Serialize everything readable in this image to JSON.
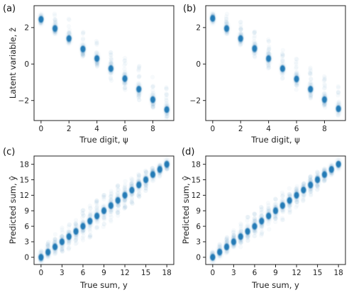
{
  "chart_data": [
    {
      "panel_label": "(a)",
      "type": "scatter",
      "xlabel": "True digit, ψ",
      "ylabel": "Latent variable, ẑ",
      "xlim": [
        -0.5,
        9.5
      ],
      "ylim": [
        -3.1,
        3.2
      ],
      "xticks": [
        0,
        2,
        4,
        6,
        8
      ],
      "yticks": [
        -2,
        0,
        2
      ],
      "xtick_labels": [
        "0",
        "2",
        "4",
        "6",
        "8"
      ],
      "ytick_labels": [
        "−2",
        "0",
        "2"
      ],
      "grid": false,
      "x": [
        0,
        1,
        2,
        3,
        4,
        5,
        6,
        7,
        8,
        9
      ],
      "y": [
        2.45,
        1.95,
        1.4,
        0.82,
        0.3,
        -0.25,
        -0.8,
        -1.38,
        -1.95,
        -2.5
      ],
      "spread_low": [
        0.3,
        0.3,
        0.3,
        0.5,
        0.6,
        0.7,
        0.7,
        0.7,
        0.6,
        0.6
      ],
      "spread_high": [
        0.3,
        0.9,
        1.1,
        1.2,
        1.1,
        1.2,
        1.2,
        1.3,
        1.4,
        1.5
      ],
      "color": "#1f77b4"
    },
    {
      "panel_label": "(b)",
      "type": "scatter",
      "xlabel": "True digit, ψ",
      "ylabel": "",
      "xlim": [
        -0.5,
        9.5
      ],
      "ylim": [
        -3.1,
        3.2
      ],
      "xticks": [
        0,
        2,
        4,
        6,
        8
      ],
      "yticks": [
        -2,
        0,
        2
      ],
      "xtick_labels": [
        "0",
        "2",
        "4",
        "6",
        "8"
      ],
      "ytick_labels": [
        "−2",
        "0",
        "2"
      ],
      "grid": false,
      "x": [
        0,
        1,
        2,
        3,
        4,
        5,
        6,
        7,
        8,
        9
      ],
      "y": [
        2.5,
        1.95,
        1.4,
        0.85,
        0.3,
        -0.25,
        -0.82,
        -1.38,
        -1.95,
        -2.45
      ],
      "spread_low": [
        0.2,
        0.3,
        0.4,
        0.5,
        0.6,
        0.6,
        0.6,
        0.6,
        0.5,
        0.4
      ],
      "spread_high": [
        0.3,
        0.8,
        1.0,
        1.1,
        1.1,
        1.2,
        1.2,
        1.2,
        1.3,
        1.4
      ],
      "color": "#1f77b4"
    },
    {
      "panel_label": "(c)",
      "type": "scatter",
      "xlabel": "True sum, y",
      "ylabel": "Predicted sum, ŷ",
      "xlim": [
        -1,
        19
      ],
      "ylim": [
        -1.4,
        19.6
      ],
      "xticks": [
        0,
        3,
        6,
        9,
        12,
        15,
        18
      ],
      "yticks": [
        0,
        3,
        6,
        9,
        12,
        15,
        18
      ],
      "xtick_labels": [
        "0",
        "3",
        "6",
        "9",
        "12",
        "15",
        "18"
      ],
      "ytick_labels": [
        "0",
        "3",
        "6",
        "9",
        "12",
        "15",
        "18"
      ],
      "grid": false,
      "x": [
        0,
        1,
        2,
        3,
        4,
        5,
        6,
        7,
        8,
        9,
        10,
        11,
        12,
        13,
        14,
        15,
        16,
        17,
        18
      ],
      "y": [
        0,
        1,
        2,
        3,
        4,
        5,
        6,
        7,
        8,
        9,
        10,
        11,
        12,
        13,
        14,
        15,
        16,
        17,
        18
      ],
      "spread_low": [
        0.6,
        1.0,
        1.5,
        2.0,
        2.5,
        3.0,
        3.0,
        3.2,
        3.2,
        3.2,
        3.2,
        3.0,
        3.0,
        2.8,
        2.5,
        2.2,
        1.8,
        1.4,
        1.0
      ],
      "spread_high": [
        1.5,
        2.0,
        2.5,
        3.0,
        3.0,
        3.2,
        3.2,
        3.2,
        3.2,
        3.2,
        3.0,
        3.0,
        2.8,
        2.5,
        2.2,
        1.8,
        1.4,
        0.9,
        0.5
      ],
      "color": "#1f77b4"
    },
    {
      "panel_label": "(d)",
      "type": "scatter",
      "xlabel": "True sum, y",
      "ylabel": "Predicted sum, ŷ",
      "xlim": [
        -1,
        19
      ],
      "ylim": [
        -1.4,
        19.6
      ],
      "xticks": [
        0,
        3,
        6,
        9,
        12,
        15,
        18
      ],
      "yticks": [
        0,
        3,
        6,
        9,
        12,
        15,
        18
      ],
      "xtick_labels": [
        "0",
        "3",
        "6",
        "9",
        "12",
        "15",
        "18"
      ],
      "ytick_labels": [
        "0",
        "3",
        "6",
        "9",
        "12",
        "15",
        "18"
      ],
      "grid": false,
      "x": [
        0,
        1,
        2,
        3,
        4,
        5,
        6,
        7,
        8,
        9,
        10,
        11,
        12,
        13,
        14,
        15,
        16,
        17,
        18
      ],
      "y": [
        0,
        1,
        2,
        3,
        4,
        5,
        6,
        7,
        8,
        9,
        10,
        11,
        12,
        13,
        14,
        15,
        16,
        17,
        18
      ],
      "spread_low": [
        0.3,
        0.8,
        1.2,
        1.6,
        2.0,
        2.4,
        2.6,
        2.8,
        2.8,
        2.8,
        2.8,
        2.6,
        2.6,
        2.4,
        2.2,
        2.0,
        1.6,
        1.2,
        0.8
      ],
      "spread_high": [
        1.0,
        1.6,
        2.0,
        2.4,
        2.6,
        2.8,
        2.8,
        2.8,
        2.8,
        2.8,
        2.6,
        2.6,
        2.4,
        2.2,
        2.0,
        1.6,
        1.2,
        0.8,
        0.3
      ],
      "color": "#1f77b4"
    }
  ]
}
